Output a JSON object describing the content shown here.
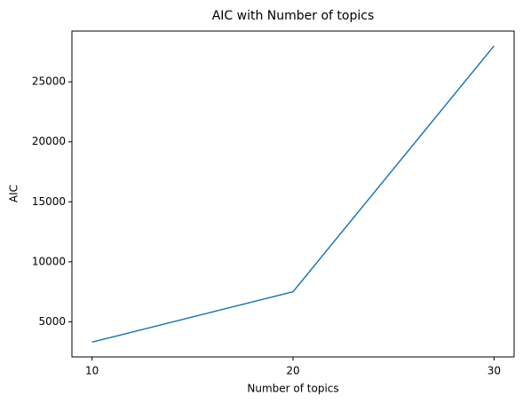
{
  "chart_data": {
    "type": "line",
    "title": "AIC with Number of topics",
    "x_label": "Number of topics",
    "y_label": "AIC",
    "x": [
      10,
      20,
      30
    ],
    "series": [
      {
        "name": "AIC",
        "color": "#1f77b4",
        "values": [
          3300,
          7500,
          28000
        ]
      }
    ],
    "xlim": [
      9,
      31
    ],
    "xticks": [
      10,
      20,
      30
    ],
    "ylim": [
      2065,
      29235
    ],
    "yticks": [
      5000,
      10000,
      15000,
      20000,
      25000
    ],
    "grid": false
  }
}
